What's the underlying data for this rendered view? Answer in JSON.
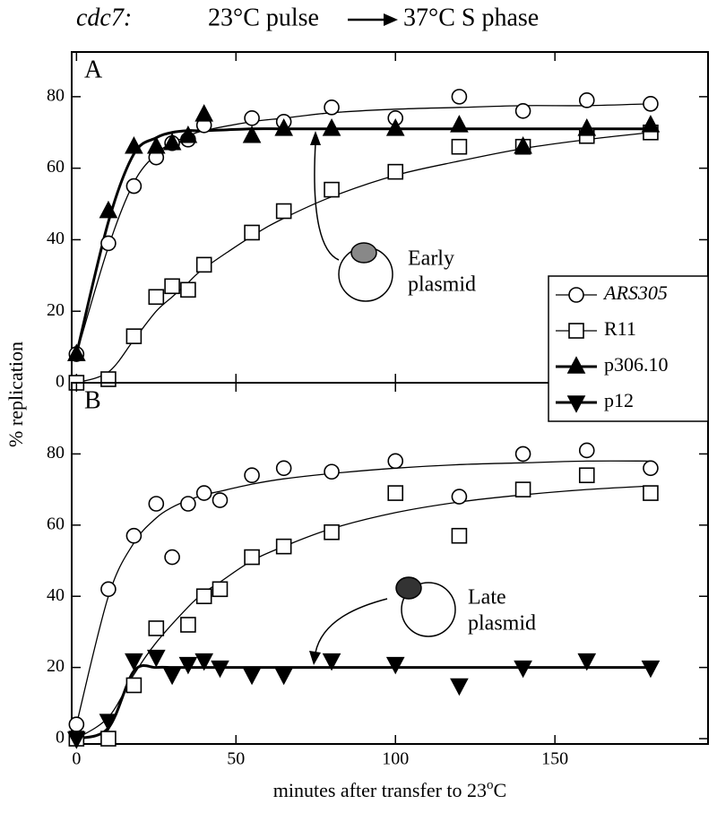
{
  "title_parts": [
    "cdc7:",
    "23°C pulse",
    "37°C S phase"
  ],
  "y_label": "% replication",
  "x_label_parts": [
    "minutes after transfer to 23",
    "o",
    "C"
  ],
  "chart_data": [
    {
      "type": "scatter",
      "label": "A",
      "xlim": [
        -1.5,
        198
      ],
      "ylim": [
        0,
        92.5
      ],
      "xticks": [
        0,
        50,
        100,
        150
      ],
      "yticks": [
        0,
        20,
        40,
        60,
        80
      ],
      "annotation": [
        "Early",
        "plasmid"
      ],
      "series": [
        {
          "name": "ARS305",
          "color": "#000000",
          "marker": "circle",
          "filled": false,
          "line_width": 1.3,
          "x": [
            0,
            10,
            18,
            25,
            30,
            35,
            40,
            55,
            65,
            80,
            100,
            120,
            140,
            160,
            180
          ],
          "values": [
            8,
            39,
            55,
            63,
            67,
            68,
            72,
            74,
            73,
            77,
            74,
            80,
            76,
            79,
            78
          ],
          "fit": [
            8,
            38,
            56,
            64,
            67,
            69,
            70.5,
            73,
            74,
            75.5,
            76.5,
            77,
            77.5,
            77.5,
            78
          ]
        },
        {
          "name": "R11",
          "color": "#000000",
          "marker": "square",
          "filled": false,
          "line_width": 1.3,
          "x": [
            0,
            10,
            18,
            25,
            30,
            35,
            40,
            55,
            65,
            80,
            100,
            120,
            140,
            160,
            180
          ],
          "values": [
            0,
            1,
            13,
            24,
            27,
            26,
            33,
            42,
            48,
            54,
            59,
            66,
            66,
            69,
            70
          ],
          "fit": [
            0,
            3,
            12,
            20,
            24,
            28,
            32,
            41,
            46,
            52,
            58,
            62,
            65.5,
            68,
            70
          ]
        },
        {
          "name": "p306.10",
          "color": "#000000",
          "marker": "triangle-up",
          "filled": true,
          "line_width": 3,
          "x": [
            0,
            10,
            18,
            25,
            30,
            35,
            40,
            55,
            65,
            80,
            100,
            120,
            140,
            160,
            180
          ],
          "values": [
            8,
            48,
            66,
            66,
            67,
            69,
            75,
            69,
            71,
            71,
            71,
            72,
            66,
            71,
            72
          ],
          "fit": [
            8,
            45,
            64,
            68.5,
            70,
            70.5,
            70.5,
            71,
            71,
            71,
            71,
            71,
            71,
            71,
            71
          ]
        }
      ]
    },
    {
      "type": "scatter",
      "label": "B",
      "xlim": [
        -1.5,
        198
      ],
      "ylim": [
        -1.5,
        100
      ],
      "xticks": [
        0,
        50,
        100,
        150
      ],
      "yticks": [
        0,
        20,
        40,
        60,
        80
      ],
      "annotation": [
        "Late",
        "plasmid"
      ],
      "series": [
        {
          "name": "ARS305",
          "color": "#000000",
          "marker": "circle",
          "filled": false,
          "line_width": 1.3,
          "x": [
            0,
            10,
            18,
            25,
            30,
            35,
            40,
            45,
            55,
            65,
            80,
            100,
            120,
            140,
            160,
            180
          ],
          "values": [
            4,
            42,
            57,
            66,
            51,
            66,
            69,
            67,
            74,
            76,
            75,
            78,
            68,
            80,
            81,
            76
          ],
          "fit": [
            4,
            40,
            55,
            62,
            65,
            67,
            68.5,
            69.5,
            71.5,
            73,
            74.5,
            76,
            77,
            77.5,
            78,
            78
          ]
        },
        {
          "name": "R11",
          "color": "#000000",
          "marker": "square",
          "filled": false,
          "line_width": 1.3,
          "x": [
            0,
            10,
            18,
            25,
            35,
            40,
            45,
            55,
            65,
            80,
            100,
            120,
            140,
            160,
            180
          ],
          "values": [
            0,
            0,
            15,
            31,
            32,
            40,
            42,
            51,
            54,
            58,
            69,
            57,
            70,
            74,
            69
          ],
          "fit": [
            0,
            6,
            18,
            27,
            37,
            41,
            44,
            50,
            54,
            59,
            63.5,
            66.5,
            68.5,
            70,
            71
          ]
        },
        {
          "name": "p12",
          "color": "#000000",
          "marker": "triangle-down",
          "filled": true,
          "line_width": 3,
          "x": [
            0,
            10,
            18,
            25,
            30,
            35,
            40,
            45,
            55,
            65,
            80,
            100,
            120,
            140,
            160,
            180
          ],
          "values": [
            0,
            5,
            22,
            23,
            18,
            21,
            22,
            20,
            18,
            18,
            22,
            21,
            15,
            20,
            22,
            20
          ],
          "fit": [
            0,
            3,
            19,
            20,
            20,
            20,
            20,
            20,
            20,
            20,
            20,
            20,
            20,
            20,
            20,
            20
          ]
        }
      ]
    }
  ]
}
